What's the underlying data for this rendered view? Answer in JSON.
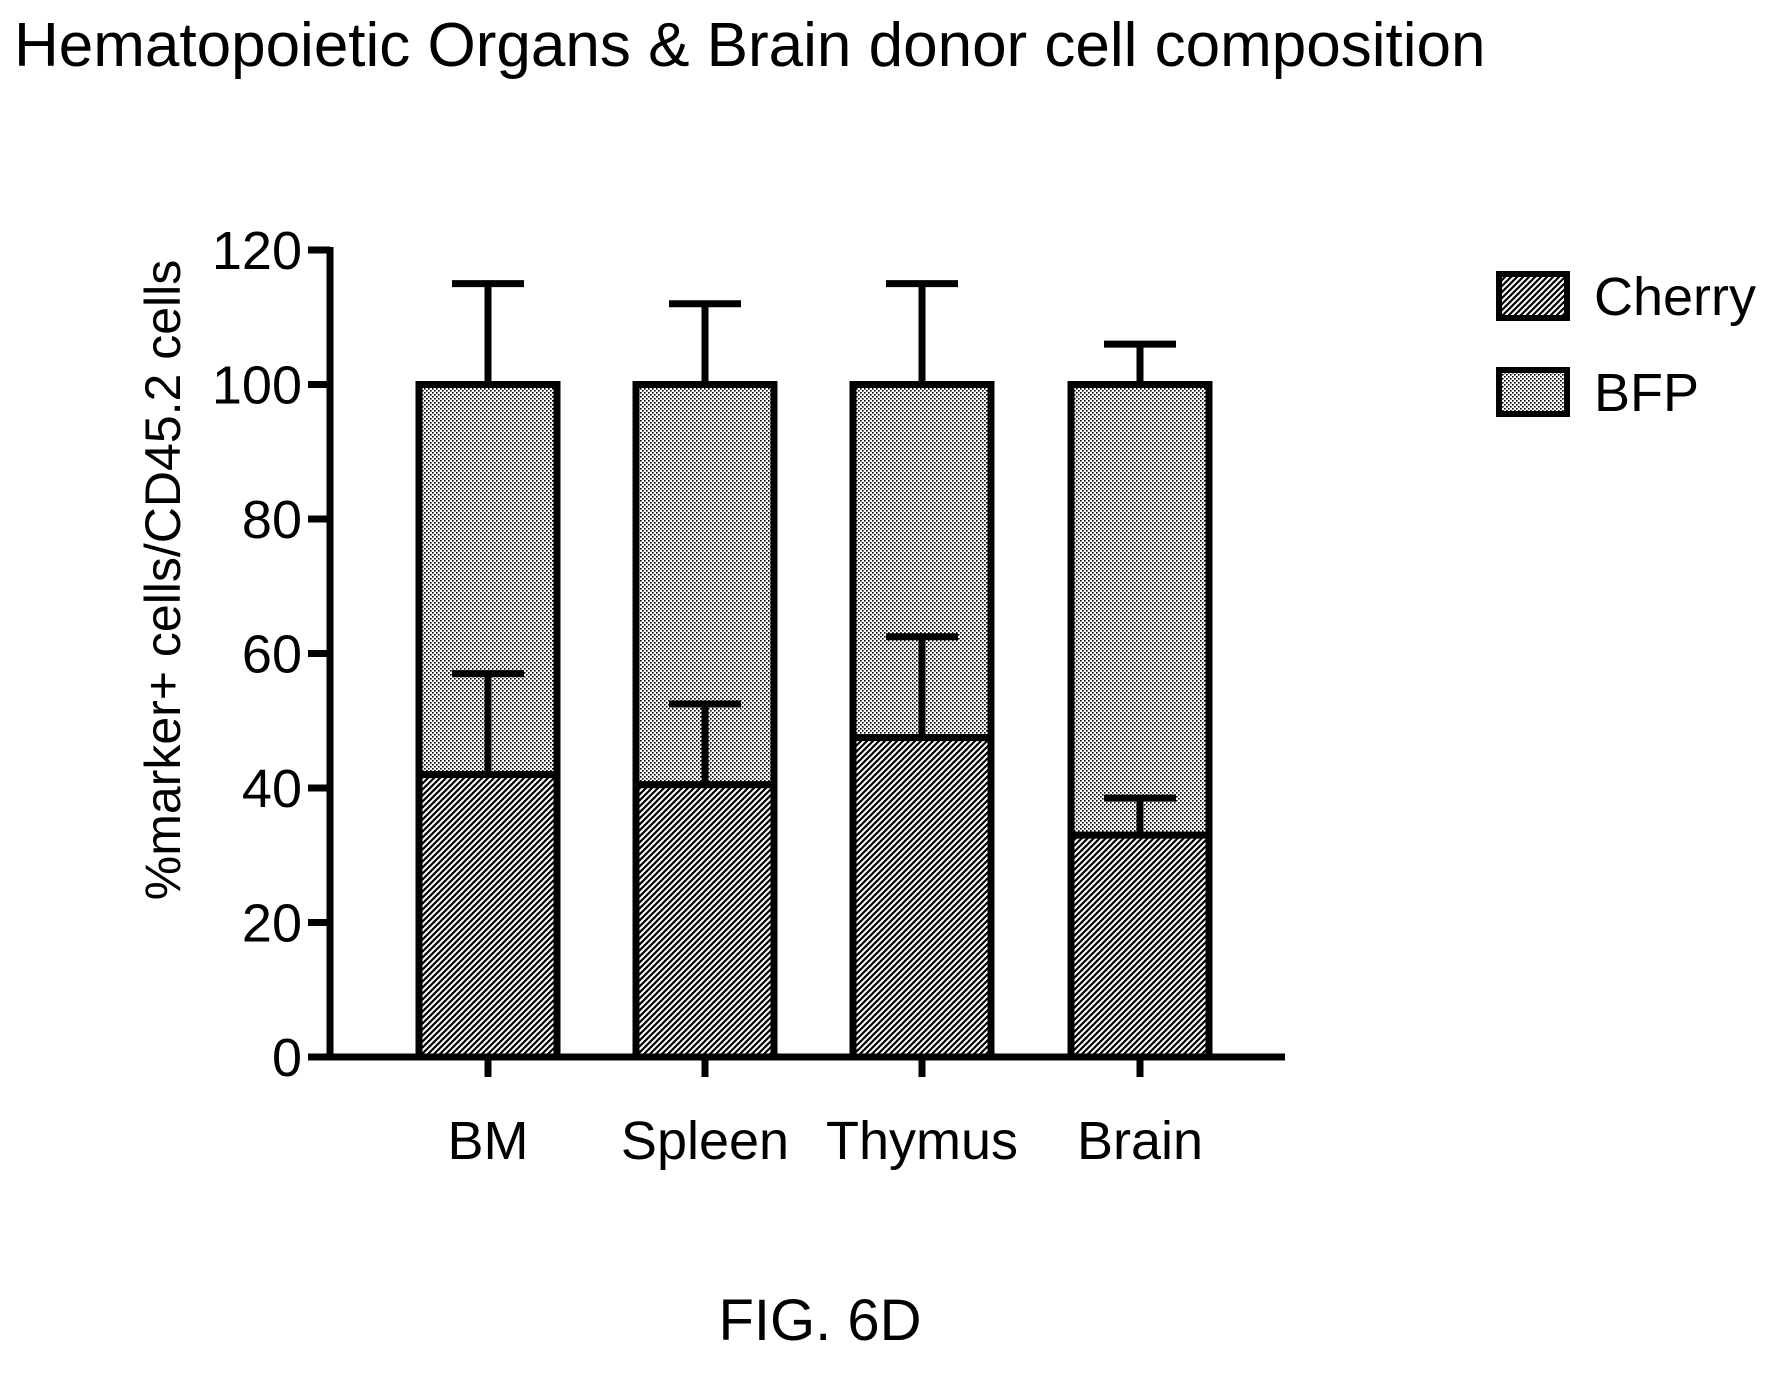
{
  "title": "Hematopoietic Organs & Brain donor cell composition",
  "figure_label": "FIG. 6D",
  "chart_data": {
    "type": "bar",
    "stacked": true,
    "categories": [
      "BM",
      "Spleen",
      "Thymus",
      "Brain"
    ],
    "series": [
      {
        "name": "Cherry",
        "values": [
          42,
          40.5,
          47.5,
          33
        ],
        "error": [
          15,
          12,
          15,
          5.5
        ],
        "pattern": "diagonal-hatch-dense"
      },
      {
        "name": "BFP",
        "values": [
          58,
          59.5,
          52.5,
          67
        ],
        "error": [
          15,
          12,
          15,
          6
        ],
        "pattern": "fine-dots"
      }
    ],
    "ylabel": "%marker+ cells/CD45.2 cells",
    "xlabel": "",
    "ylim": [
      0,
      120
    ],
    "yticks": [
      "0",
      "20",
      "40",
      "60",
      "80",
      "100",
      "120"
    ],
    "grid": false,
    "legend_position": "top-right"
  }
}
